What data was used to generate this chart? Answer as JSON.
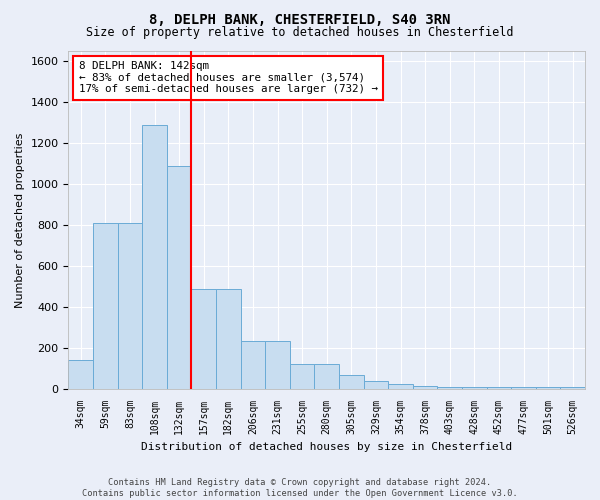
{
  "title1": "8, DELPH BANK, CHESTERFIELD, S40 3RN",
  "title2": "Size of property relative to detached houses in Chesterfield",
  "xlabel": "Distribution of detached houses by size in Chesterfield",
  "ylabel": "Number of detached properties",
  "categories": [
    "34sqm",
    "59sqm",
    "83sqm",
    "108sqm",
    "132sqm",
    "157sqm",
    "182sqm",
    "206sqm",
    "231sqm",
    "255sqm",
    "280sqm",
    "305sqm",
    "329sqm",
    "354sqm",
    "378sqm",
    "403sqm",
    "428sqm",
    "452sqm",
    "477sqm",
    "501sqm",
    "526sqm"
  ],
  "values": [
    140,
    810,
    810,
    1290,
    1090,
    490,
    490,
    235,
    235,
    125,
    125,
    70,
    40,
    25,
    15,
    10,
    10,
    10,
    10,
    10,
    10
  ],
  "bar_color": "#c8ddf0",
  "bar_edge_color": "#6aabd6",
  "annotation_line1": "8 DELPH BANK: 142sqm",
  "annotation_line2": "← 83% of detached houses are smaller (3,574)",
  "annotation_line3": "17% of semi-detached houses are larger (732) →",
  "ylim": [
    0,
    1650
  ],
  "yticks": [
    0,
    200,
    400,
    600,
    800,
    1000,
    1200,
    1400,
    1600
  ],
  "red_line_x": 4.5,
  "background_color": "#e8eef8",
  "grid_color": "#ffffff",
  "fig_bg_color": "#eaeef8",
  "footer1": "Contains HM Land Registry data © Crown copyright and database right 2024.",
  "footer2": "Contains public sector information licensed under the Open Government Licence v3.0."
}
